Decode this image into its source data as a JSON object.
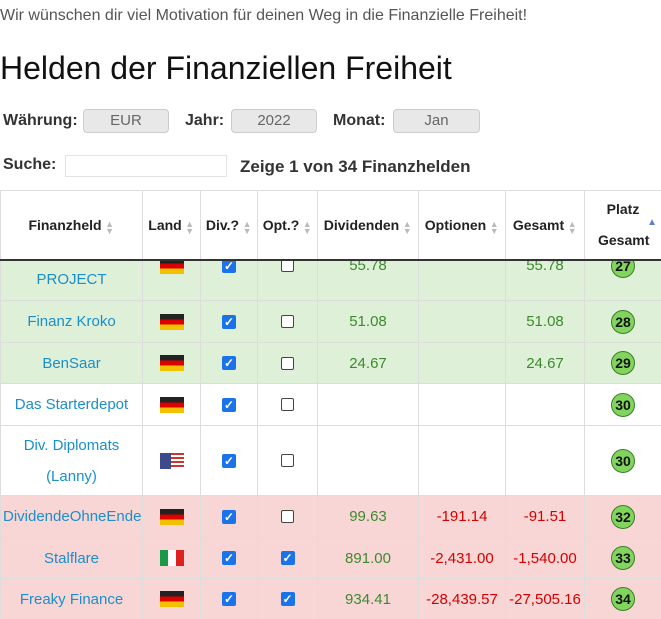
{
  "intro": "Wir wünschen dir viel Motivation für deinen Weg in die Finanzielle Freiheit!",
  "title": "Helden der Finanziellen Freiheit",
  "filters": {
    "currency_label": "Währung:",
    "currency": "EUR",
    "year_label": "Jahr:",
    "year": "2022",
    "month_label": "Monat:",
    "month": "Jan"
  },
  "search": {
    "label": "Suche:",
    "info": "Zeige 1 von 34 Finanzhelden"
  },
  "table": {
    "headers": [
      "Finanzheld",
      "Land",
      "Div.?",
      "Opt.?",
      "Dividenden",
      "Optionen",
      "Gesamt",
      "Platz Gesamt"
    ],
    "rows": [
      {
        "name": "PROJECT",
        "dividends": "55.78",
        "total": "55.78",
        "rank": "27"
      },
      {
        "name": "Finanz Kroko",
        "dividends": "51.08",
        "total": "51.08",
        "rank": "28"
      },
      {
        "name": "BenSaar",
        "dividends": "24.67",
        "total": "24.67",
        "rank": "29"
      },
      {
        "name": "Das Starterdepot",
        "rank": "30"
      },
      {
        "name": "Div. Diplomats (Lanny)",
        "rank": "30"
      },
      {
        "name": "DividendeOhneEnde",
        "dividends": "99.63",
        "options": "-191.14",
        "total": "-91.51",
        "rank": "32"
      },
      {
        "name": "Stalflare",
        "dividends": "891.00",
        "options": "-2,431.00",
        "total": "-1,540.00",
        "rank": "33"
      },
      {
        "name": "Freaky Finance",
        "dividends": "934.41",
        "options": "-28,439.57",
        "total": "-27,505.16",
        "rank": "34"
      }
    ]
  }
}
